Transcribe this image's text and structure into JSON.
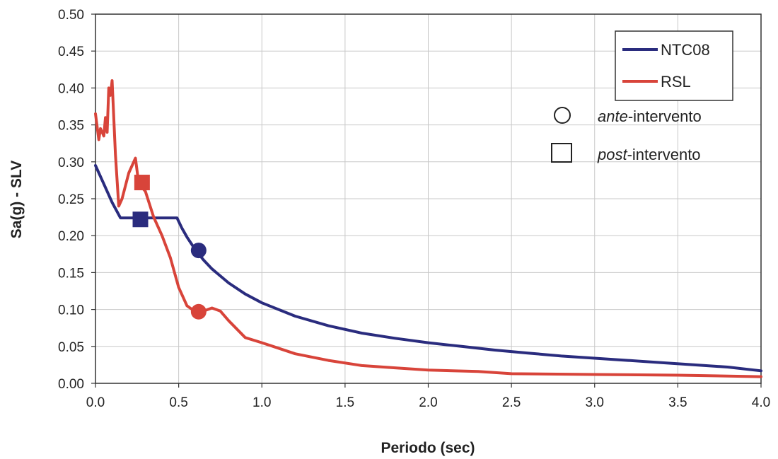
{
  "chart_data": {
    "type": "line",
    "title": "",
    "xlabel": "Periodo (sec)",
    "ylabel": "Sa(g) - SLV",
    "xlim": [
      0,
      4.0
    ],
    "ylim": [
      0,
      0.5
    ],
    "xticks": [
      "0.0",
      "0.5",
      "1.0",
      "1.5",
      "2.0",
      "2.5",
      "3.0",
      "3.5",
      "4.0"
    ],
    "yticks": [
      "0.00",
      "0.05",
      "0.10",
      "0.15",
      "0.20",
      "0.25",
      "0.30",
      "0.35",
      "0.40",
      "0.45",
      "0.50"
    ],
    "grid": true,
    "legend_position": "top-right",
    "series": [
      {
        "name": "NTC08",
        "color": "#2a2c7e",
        "x": [
          0.0,
          0.05,
          0.1,
          0.15,
          0.2,
          0.3,
          0.4,
          0.49,
          0.52,
          0.55,
          0.6,
          0.65,
          0.7,
          0.8,
          0.9,
          1.0,
          1.2,
          1.4,
          1.6,
          1.8,
          2.0,
          2.2,
          2.4,
          2.6,
          2.8,
          3.0,
          3.2,
          3.4,
          3.6,
          3.8,
          4.0
        ],
        "y": [
          0.295,
          0.27,
          0.245,
          0.224,
          0.224,
          0.224,
          0.224,
          0.224,
          0.21,
          0.198,
          0.181,
          0.167,
          0.155,
          0.136,
          0.121,
          0.109,
          0.091,
          0.078,
          0.068,
          0.061,
          0.055,
          0.05,
          0.045,
          0.041,
          0.037,
          0.034,
          0.031,
          0.028,
          0.025,
          0.022,
          0.017
        ]
      },
      {
        "name": "RSL",
        "color": "#d8443a",
        "x": [
          0.0,
          0.02,
          0.03,
          0.05,
          0.06,
          0.07,
          0.08,
          0.09,
          0.1,
          0.12,
          0.14,
          0.16,
          0.2,
          0.24,
          0.26,
          0.3,
          0.35,
          0.4,
          0.45,
          0.5,
          0.55,
          0.6,
          0.65,
          0.7,
          0.75,
          0.8,
          0.9,
          1.0,
          1.2,
          1.4,
          1.6,
          1.8,
          2.0,
          2.3,
          2.5,
          3.0,
          3.5,
          4.0
        ],
        "y": [
          0.365,
          0.33,
          0.345,
          0.335,
          0.36,
          0.34,
          0.4,
          0.39,
          0.41,
          0.31,
          0.24,
          0.25,
          0.285,
          0.305,
          0.27,
          0.26,
          0.225,
          0.2,
          0.17,
          0.13,
          0.105,
          0.097,
          0.098,
          0.102,
          0.098,
          0.085,
          0.062,
          0.055,
          0.04,
          0.031,
          0.024,
          0.021,
          0.018,
          0.016,
          0.013,
          0.012,
          0.011,
          0.009
        ]
      }
    ],
    "markers": [
      {
        "label": "ante-intervento",
        "shape": "circle",
        "series": "NTC08",
        "x": 0.62,
        "y": 0.18
      },
      {
        "label": "ante-intervento",
        "shape": "circle",
        "series": "RSL",
        "x": 0.62,
        "y": 0.097
      },
      {
        "label": "post-intervento",
        "shape": "square",
        "series": "NTC08",
        "x": 0.27,
        "y": 0.222
      },
      {
        "label": "post-intervento",
        "shape": "square",
        "series": "RSL",
        "x": 0.28,
        "y": 0.272
      }
    ],
    "marker_legend": [
      {
        "shape": "circle",
        "emph": "ante",
        "rest": "-intervento"
      },
      {
        "shape": "square",
        "emph": "post",
        "rest": "-intervento"
      }
    ]
  }
}
